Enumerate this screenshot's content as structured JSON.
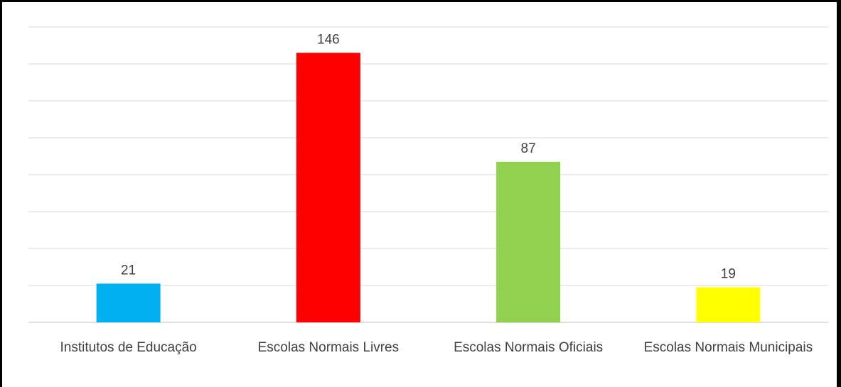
{
  "chart_data": {
    "type": "bar",
    "title": "",
    "xlabel": "",
    "ylabel": "",
    "categories": [
      "Institutos de Educação",
      "Escolas Normais Livres",
      "Escolas Normais Oficiais",
      "Escolas Normais Municipais"
    ],
    "values": [
      21,
      146,
      87,
      19
    ],
    "value_labels": [
      "21",
      "146",
      "87",
      "19"
    ],
    "colors": [
      "#00b0f0",
      "#ff0000",
      "#92d050",
      "#ffff00"
    ],
    "ylim": [
      0,
      160
    ],
    "y_gridline_step": 20,
    "grid": true,
    "y_axis_labels_shown": false,
    "legend": "none"
  }
}
